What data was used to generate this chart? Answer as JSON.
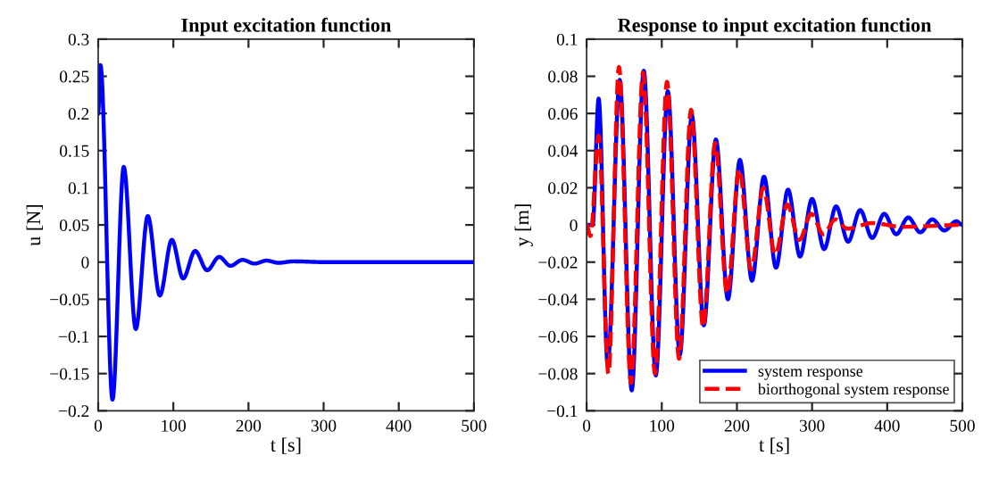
{
  "chart_data": [
    {
      "type": "line",
      "title": "Input excitation function",
      "xlabel": "t [s]",
      "ylabel": "u [N]",
      "xlim": [
        0,
        500
      ],
      "xticks": [
        0,
        100,
        200,
        300,
        400,
        500
      ],
      "ylim": [
        -0.2,
        0.3
      ],
      "yticks": [
        -0.2,
        -0.15,
        -0.1,
        -0.05,
        0,
        0.05,
        0.1,
        0.15,
        0.2,
        0.25,
        0.3
      ],
      "grid": false,
      "legend": false,
      "marker": "none",
      "line_style": "solid",
      "series": [
        {
          "color": "#0000ff",
          "x": [
            0,
            3,
            19,
            34,
            50,
            66,
            82,
            98,
            113,
            129,
            145,
            161,
            176,
            192,
            208,
            224,
            240,
            260,
            300,
            500
          ],
          "values": [
            0.2,
            0.265,
            -0.185,
            0.128,
            -0.09,
            0.062,
            -0.045,
            0.03,
            -0.022,
            0.015,
            -0.011,
            0.007,
            -0.005,
            0.003,
            -0.002,
            0.002,
            -0.001,
            0.001,
            0,
            0
          ]
        }
      ]
    },
    {
      "type": "line",
      "title": "Response to input excitation function",
      "xlabel": "t [s]",
      "ylabel": "y [m]",
      "xlim": [
        0,
        500
      ],
      "xticks": [
        0,
        100,
        200,
        300,
        400,
        500
      ],
      "ylim": [
        -0.1,
        0.1
      ],
      "yticks": [
        -0.1,
        -0.08,
        -0.06,
        -0.04,
        -0.02,
        0,
        0.02,
        0.04,
        0.06,
        0.08,
        0.1
      ],
      "grid": false,
      "legend": "bottom right",
      "marker": "none",
      "series": [
        {
          "name": "system response",
          "color": "#0000ff",
          "line_style": "solid",
          "x": [
            0,
            8,
            16,
            28,
            44,
            60,
            76,
            92,
            108,
            124,
            140,
            156,
            172,
            188,
            204,
            220,
            236,
            252,
            268,
            284,
            300,
            316,
            332,
            348,
            364,
            380,
            396,
            412,
            428,
            444,
            460,
            476,
            492,
            500
          ],
          "values": [
            0,
            0,
            0.068,
            -0.075,
            0.078,
            -0.089,
            0.083,
            -0.081,
            0.072,
            -0.07,
            0.059,
            -0.054,
            0.046,
            -0.04,
            0.035,
            -0.03,
            0.026,
            -0.023,
            0.019,
            -0.017,
            0.014,
            -0.013,
            0.01,
            -0.009,
            0.008,
            -0.007,
            0.006,
            -0.005,
            0.004,
            -0.004,
            0.003,
            -0.003,
            0.002,
            0
          ]
        },
        {
          "name": "biorthogonal system response",
          "color": "#ff0000",
          "line_style": "dashed",
          "x": [
            0,
            5,
            16,
            29,
            43,
            59,
            75,
            91,
            107,
            123,
            139,
            155,
            171,
            187,
            203,
            219,
            235,
            251,
            267,
            283,
            299,
            315,
            331,
            347,
            380,
            420,
            500
          ],
          "values": [
            0,
            -0.006,
            0.048,
            -0.08,
            0.085,
            -0.085,
            0.082,
            -0.08,
            0.077,
            -0.072,
            0.062,
            -0.055,
            0.044,
            -0.037,
            0.03,
            -0.024,
            0.02,
            -0.016,
            0.011,
            -0.008,
            0.006,
            -0.005,
            0.003,
            -0.002,
            0.001,
            -0.001,
            0
          ]
        }
      ]
    }
  ]
}
